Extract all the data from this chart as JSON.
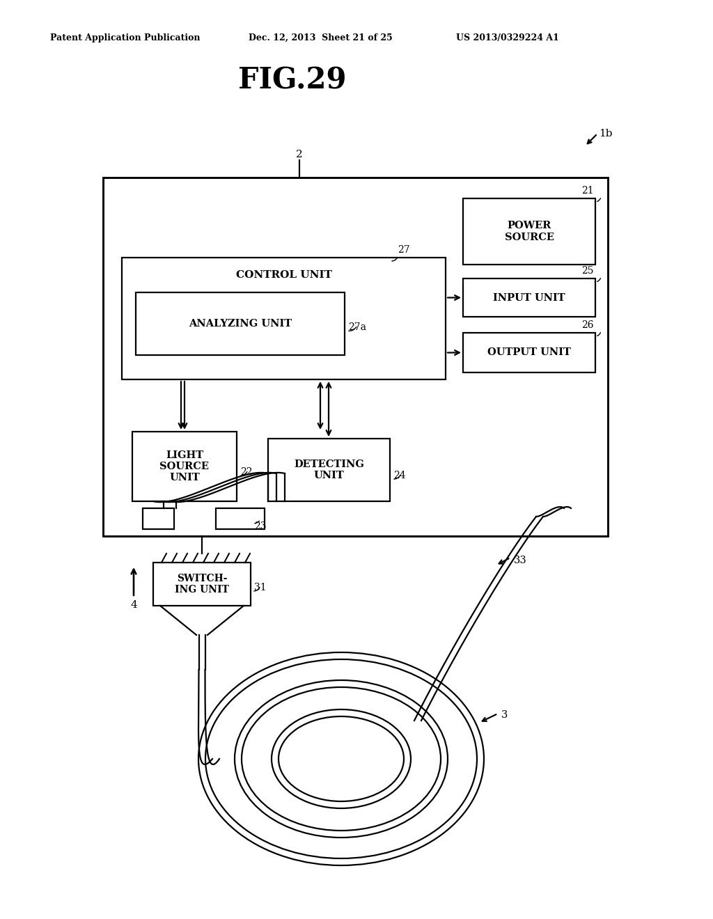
{
  "bg_color": "#ffffff",
  "header_left": "Patent Application Publication",
  "header_mid": "Dec. 12, 2013  Sheet 21 of 25",
  "header_right": "US 2013/0329224 A1",
  "fig_title": "FIG.29",
  "label_1b": "1b",
  "label_2": "2",
  "label_21": "21",
  "label_22": "22",
  "label_23": "23",
  "label_24": "24",
  "label_25": "25",
  "label_26": "26",
  "label_27": "27",
  "label_27a": "27a",
  "label_31": "31",
  "label_33": "33",
  "label_3": "3",
  "label_4": "4",
  "line_color": "#000000",
  "text_color": "#000000"
}
